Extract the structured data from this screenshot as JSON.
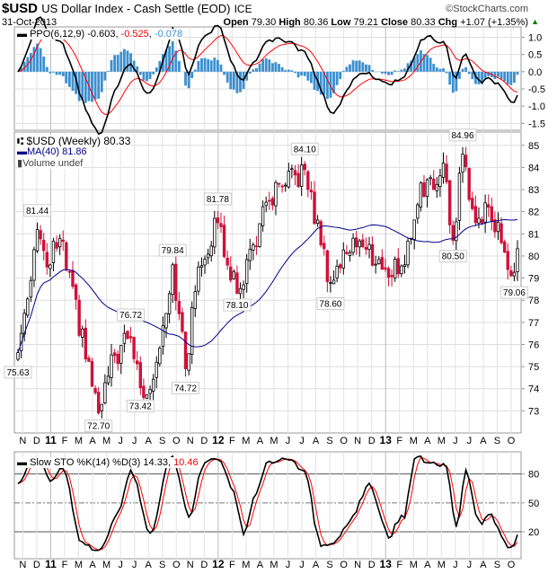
{
  "header": {
    "symbol": "$USD",
    "name": "US Dollar Index - Cash Settle (EOD)",
    "exchange": "ICE",
    "watermark": "©StockCharts.com",
    "date": "31-Oct-2013",
    "open_label": "Open",
    "open": "79.30",
    "high_label": "High",
    "high": "80.36",
    "low_label": "Low",
    "low": "79.21",
    "close_label": "Close",
    "close": "80.33",
    "chg_label": "Chg",
    "chg": "+1.07 (+1.35%)",
    "up_color": "#008000"
  },
  "chart_data": [
    {
      "type": "line",
      "title": "PPO(6,12,9)",
      "legend": {
        "ppo": "-0.603",
        "signal": "-0.525",
        "hist": "-0.078"
      },
      "ylim": [
        -1.7,
        1.3
      ],
      "yticks": [
        "1.0",
        "0.5",
        "0.0",
        "-0.5",
        "-1.0",
        "-1.5"
      ],
      "colors": {
        "ppo": "#000000",
        "signal": "#ff0000",
        "hist": "#3b8fd0"
      }
    },
    {
      "type": "candlestick",
      "title": "$USD (Weekly) 80.33",
      "ma_label": "MA(40) 81.86",
      "volume_label": "Volume undef",
      "ylim": [
        72,
        85.6
      ],
      "yticks": [
        "85",
        "84",
        "83",
        "82",
        "81",
        "80",
        "79",
        "78",
        "77",
        "76",
        "75",
        "74",
        "73"
      ],
      "weeks": 156,
      "close_keypoints": [
        [
          0,
          75.63
        ],
        [
          6,
          81.2
        ],
        [
          9,
          79.5
        ],
        [
          13,
          80.8
        ],
        [
          25,
          72.9
        ],
        [
          30,
          75.5
        ],
        [
          35,
          76.3
        ],
        [
          39,
          73.6
        ],
        [
          43,
          75.2
        ],
        [
          48,
          79.6
        ],
        [
          52,
          74.9
        ],
        [
          56,
          79.5
        ],
        [
          62,
          81.5
        ],
        [
          68,
          78.3
        ],
        [
          73,
          80.5
        ],
        [
          78,
          82.5
        ],
        [
          83,
          83.2
        ],
        [
          89,
          83.9
        ],
        [
          94,
          80.5
        ],
        [
          97,
          78.8
        ],
        [
          104,
          80.8
        ],
        [
          108,
          80.3
        ],
        [
          114,
          79.4
        ],
        [
          120,
          79.6
        ],
        [
          125,
          83.3
        ],
        [
          129,
          83.0
        ],
        [
          132,
          84.2
        ],
        [
          135,
          80.7
        ],
        [
          138,
          84.6
        ],
        [
          142,
          81.5
        ],
        [
          146,
          82.2
        ],
        [
          150,
          80.6
        ],
        [
          154,
          79.26
        ],
        [
          155,
          80.33
        ]
      ],
      "annotations": [
        {
          "w": 0,
          "label": "75.63",
          "pos": "below"
        },
        {
          "w": 6,
          "label": "81.44",
          "pos": "above"
        },
        {
          "w": 25,
          "label": "72.70",
          "pos": "below"
        },
        {
          "w": 35,
          "label": "76.72",
          "pos": "above"
        },
        {
          "w": 38,
          "label": "73.42",
          "pos": "below"
        },
        {
          "w": 48,
          "label": "79.84",
          "pos": "above"
        },
        {
          "w": 52,
          "label": "74.72",
          "pos": "below"
        },
        {
          "w": 62,
          "label": "81.78",
          "pos": "above"
        },
        {
          "w": 68,
          "label": "78.10",
          "pos": "below"
        },
        {
          "w": 89,
          "label": "84.10",
          "pos": "above"
        },
        {
          "w": 97,
          "label": "78.60",
          "pos": "below"
        },
        {
          "w": 135,
          "label": "80.50",
          "pos": "below"
        },
        {
          "w": 138,
          "label": "84.96",
          "pos": "above"
        },
        {
          "w": 154,
          "label": "79.06",
          "pos": "below"
        }
      ],
      "colors": {
        "up": "#000000",
        "down": "#d0103a",
        "ma": "#00008b"
      }
    },
    {
      "type": "line",
      "title": "Slow STO %K(14) %D(3)",
      "legend": {
        "k": "14.33",
        "d": "10.46"
      },
      "ylim": [
        -8,
        103
      ],
      "yticks": [
        "80",
        "50",
        "20"
      ],
      "colors": {
        "k": "#000000",
        "d": "#ff0000"
      }
    }
  ],
  "xaxis": {
    "labels": [
      "N",
      "D",
      "11",
      "F",
      "M",
      "A",
      "M",
      "J",
      "J",
      "A",
      "S",
      "O",
      "N",
      "D",
      "12",
      "F",
      "M",
      "A",
      "M",
      "J",
      "J",
      "A",
      "S",
      "O",
      "N",
      "D",
      "13",
      "F",
      "M",
      "A",
      "M",
      "J",
      "J",
      "A",
      "S",
      "O"
    ],
    "bold": [
      "11",
      "12",
      "13"
    ]
  }
}
